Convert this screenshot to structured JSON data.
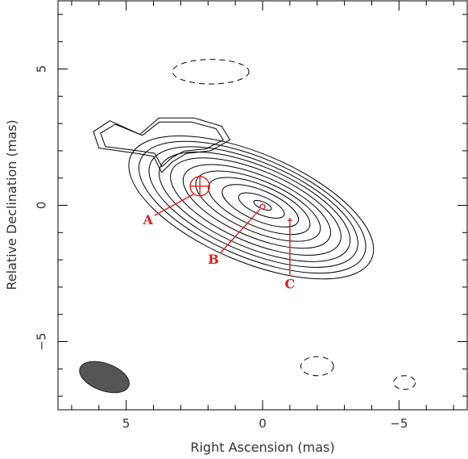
{
  "chart_data": {
    "type": "contour",
    "xlabel": "Right Ascension  (mas)",
    "ylabel": "Relative Declination  (mas)",
    "xlim": [
      7.5,
      -7.5
    ],
    "ylim": [
      -7.5,
      7.5
    ],
    "x_tick_labels": [
      "5",
      "0",
      "−5"
    ],
    "x_tick_values": [
      5,
      0,
      -5
    ],
    "y_tick_labels": [
      "5",
      "0",
      "−5"
    ],
    "y_tick_values": [
      5,
      0,
      -5
    ],
    "grid": false,
    "colors": {
      "contour": "#000000",
      "marker": "#d8201c",
      "beam": "#555555"
    },
    "source": {
      "center": [
        0,
        0
      ],
      "position_angle_deg": -23,
      "contour_semi_major": [
        0.35,
        0.9,
        1.5,
        2.0,
        2.45,
        2.9,
        3.35,
        3.75,
        4.1,
        4.45,
        4.8
      ],
      "axis_ratio": 0.36
    },
    "extended_lobe": {
      "outline": [
        [
          4.5,
          2.6
        ],
        [
          3.8,
          3.2
        ],
        [
          2.5,
          3.2
        ],
        [
          1.5,
          2.9
        ],
        [
          1.2,
          2.4
        ],
        [
          1.9,
          2.0
        ],
        [
          2.8,
          1.9
        ],
        [
          3.3,
          1.6
        ],
        [
          3.7,
          1.2
        ],
        [
          4.0,
          1.8
        ],
        [
          4.6,
          1.9
        ],
        [
          6.0,
          2.1
        ],
        [
          6.2,
          2.7
        ],
        [
          5.6,
          3.1
        ],
        [
          4.5,
          2.6
        ]
      ]
    },
    "negative_contours": [
      {
        "center": [
          1.9,
          4.9
        ],
        "rx": 1.4,
        "ry": 0.45
      },
      {
        "center": [
          -2.0,
          -5.9
        ],
        "rx": 0.6,
        "ry": 0.35
      },
      {
        "center": [
          -5.2,
          -6.5
        ],
        "rx": 0.4,
        "ry": 0.25
      }
    ],
    "beam": {
      "center": [
        5.8,
        -6.3
      ],
      "major": 1.9,
      "minor": 1.0,
      "position_angle_deg": 20
    },
    "markers": [
      {
        "label": "A",
        "x": 2.3,
        "y": 0.7,
        "kind": "circle-cross",
        "label_x": 4.2,
        "label_y": -0.55
      },
      {
        "label": "B",
        "x": 0.0,
        "y": -0.05,
        "kind": "dot",
        "label_x": 1.8,
        "label_y": -2.0
      },
      {
        "label": "C",
        "x": -1.0,
        "y": -0.55,
        "kind": "plus",
        "label_x": -1.0,
        "label_y": -2.9
      }
    ]
  }
}
